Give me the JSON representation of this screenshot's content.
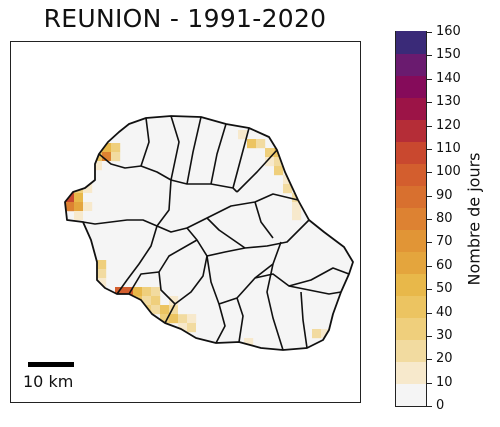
{
  "title": "REUNION - 1991-2020",
  "scale_bar": {
    "label": "10 km"
  },
  "colorbar": {
    "label": "Nombre de jours",
    "min": 0,
    "max": 160,
    "ticks": [
      "0",
      "10",
      "20",
      "30",
      "40",
      "50",
      "60",
      "70",
      "80",
      "90",
      "100",
      "110",
      "120",
      "130",
      "140",
      "150",
      "160"
    ],
    "colors": [
      "#f5f5f5",
      "#f7e9cc",
      "#f2dba0",
      "#efcf7c",
      "#ecc461",
      "#e8b84a",
      "#e4a53d",
      "#e19536",
      "#dd8232",
      "#d8702f",
      "#d35e2e",
      "#c9482f",
      "#b52d37",
      "#9c1447",
      "#850b5a",
      "#6a1b6f",
      "#3a2a78"
    ]
  },
  "map_data": {
    "cell_values_days": [
      5,
      15,
      25,
      35,
      45,
      55,
      65,
      80,
      100,
      115
    ]
  }
}
